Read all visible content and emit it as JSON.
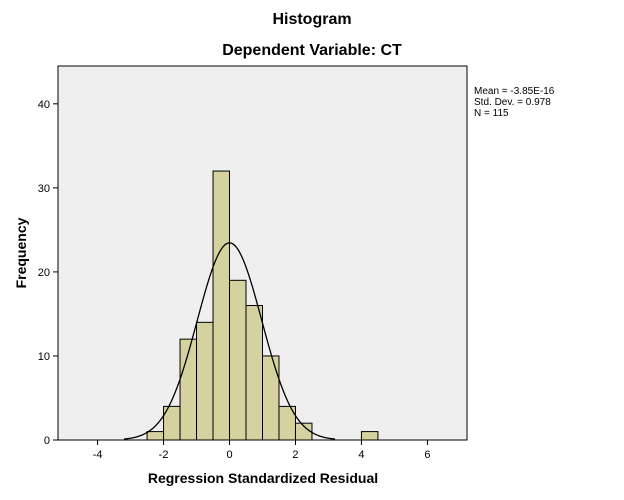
{
  "chart_data": {
    "type": "bar",
    "title": "Histogram",
    "subtitle": "Dependent Variable: CT",
    "xlabel": "Regression Standardized Residual",
    "ylabel": "Frequency",
    "xlim": [
      -5.2,
      7.2
    ],
    "ylim": [
      0,
      44.5
    ],
    "xticks": [
      -4,
      -2,
      0,
      2,
      4,
      6
    ],
    "yticks": [
      0,
      10,
      20,
      30,
      40
    ],
    "bin_width": 0.5,
    "bins": [
      {
        "start": -2.5,
        "count": 1
      },
      {
        "start": -2.0,
        "count": 4
      },
      {
        "start": -1.5,
        "count": 12
      },
      {
        "start": -1.0,
        "count": 14
      },
      {
        "start": -0.5,
        "count": 32
      },
      {
        "start": 0.0,
        "count": 19
      },
      {
        "start": 0.5,
        "count": 16
      },
      {
        "start": 1.0,
        "count": 10
      },
      {
        "start": 1.5,
        "count": 4
      },
      {
        "start": 2.0,
        "count": 2
      },
      {
        "start": 4.0,
        "count": 1
      }
    ],
    "normal_curve": {
      "mean": 0,
      "sd": 0.978,
      "n": 115
    },
    "stats": [
      "Mean = -3.85E-16",
      "Std. Dev. = 0.978",
      "N = 115"
    ],
    "colors": {
      "bar_fill": "#d6d2a0",
      "bar_edge": "#000000",
      "plot_bg": "#efefef",
      "curve": "#000000"
    }
  }
}
